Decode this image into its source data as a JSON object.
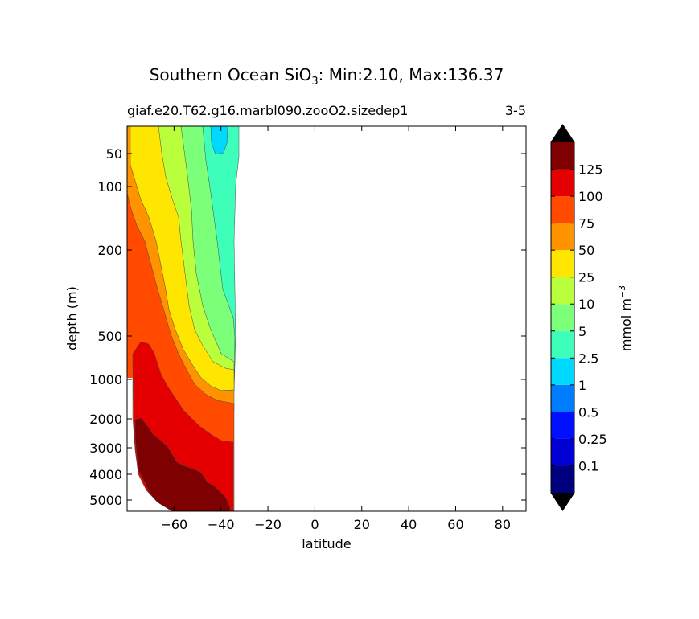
{
  "chart_data": {
    "type": "contourf",
    "title_prefix": "Southern Ocean SiO",
    "title_subscript": "3",
    "title_suffix": ": Min:2.10, Max:136.37",
    "subtitle_left": "giaf.e20.T62.g16.marbl090.zooO2.sizedep1",
    "subtitle_right": "3-5",
    "xlabel": "latitude",
    "ylabel": "depth (m)",
    "xlim": [
      -80,
      90
    ],
    "x_ticks": [
      -60,
      -40,
      -20,
      0,
      20,
      40,
      60,
      80
    ],
    "x_tick_labels": [
      "−60",
      "−40",
      "−20",
      "0",
      "20",
      "40",
      "60",
      "80"
    ],
    "y_ticks": [
      50,
      100,
      200,
      500,
      1000,
      2000,
      3000,
      4000,
      5000
    ],
    "y_tick_labels": [
      "50",
      "100",
      "200",
      "500",
      "1000",
      "2000",
      "3000",
      "4000",
      "5000"
    ],
    "data_lat_range": [
      -80,
      -33
    ],
    "colorbar": {
      "label_text": "mmol m",
      "label_superscript": "−3",
      "levels": [
        "0.1",
        "0.25",
        "0.5",
        "1",
        "2.5",
        "5",
        "10",
        "25",
        "50",
        "75",
        "100",
        "125"
      ],
      "colors": [
        "#00007f",
        "#0000d4",
        "#0010ff",
        "#007cff",
        "#00d9ff",
        "#3dffba",
        "#7cff79",
        "#baff3c",
        "#ffe600",
        "#ff9400",
        "#ff4a00",
        "#e40000",
        "#7f0000"
      ],
      "extend_color": "#000000"
    }
  }
}
